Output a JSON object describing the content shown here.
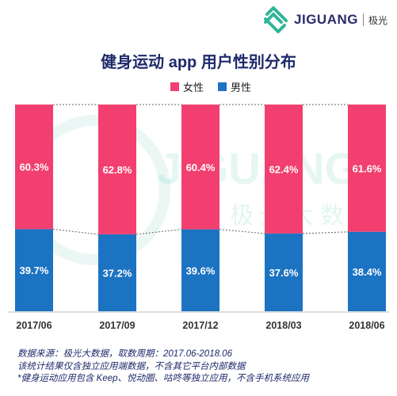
{
  "brand": {
    "name": "JIGUANG",
    "sub": "极光"
  },
  "watermark": {
    "name": "JIGUANG",
    "sub": "极光大数据"
  },
  "colors": {
    "female": "#f23f6f",
    "male": "#1b73c2",
    "title": "#1f2a6b"
  },
  "chart_data": {
    "type": "bar",
    "stacked": true,
    "normalized": true,
    "title": "健身运动 app 用户性别分布",
    "categories": [
      "2017/06",
      "2017/09",
      "2017/12",
      "2018/03",
      "2018/06"
    ],
    "series": [
      {
        "name": "女性",
        "values": [
          60.3,
          62.8,
          60.4,
          62.4,
          61.6
        ],
        "labels": [
          "60.3%",
          "62.8%",
          "60.4%",
          "62.4%",
          "61.6%"
        ]
      },
      {
        "name": "男性",
        "values": [
          39.7,
          37.2,
          39.6,
          37.6,
          38.4
        ],
        "labels": [
          "39.7%",
          "37.2%",
          "39.6%",
          "37.6%",
          "38.4%"
        ]
      }
    ],
    "ylim": [
      0,
      100
    ],
    "legend_position": "top-center",
    "grid": false
  },
  "notes": [
    "数据来源：极光大数据，取数周期：2017.06-2018.06",
    "该统计结果仅含独立应用端数据，不含其它平台内部数据",
    "*健身运动应用包含 Keep、悦动圈、咕咚等独立应用，不含手机系统应用"
  ]
}
